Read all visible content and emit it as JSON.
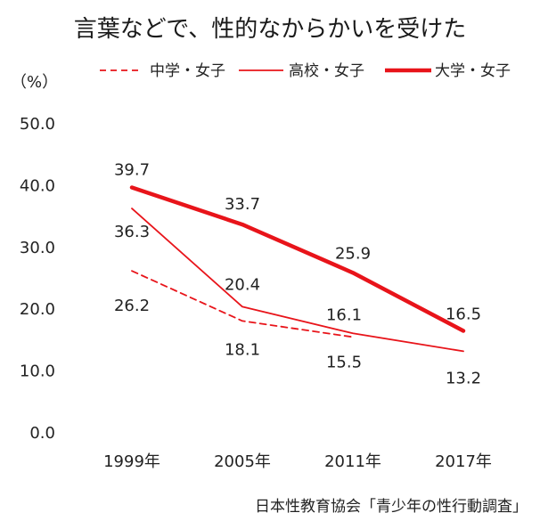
{
  "title": "言葉などで、性的なからかいを受けた",
  "unit": "（%）",
  "source": "日本性教育協会「青少年の性行動調査」",
  "colors": {
    "series": "#e8141a",
    "text": "#222222"
  },
  "chart_data": {
    "type": "line",
    "title": "言葉などで、性的なからかいを受けた",
    "ylabel": "（%）",
    "xlabel": "",
    "categories": [
      "1999年",
      "2005年",
      "2011年",
      "2017年"
    ],
    "ylim": [
      0,
      50
    ],
    "yticks": [
      "0.0",
      "10.0",
      "20.0",
      "30.0",
      "40.0",
      "50.0"
    ],
    "grid": false,
    "legend": "top",
    "series": [
      {
        "name": "中学・女子",
        "style": "dashed",
        "values": [
          26.2,
          18.1,
          15.5,
          null
        ],
        "labels": [
          "26.2",
          "18.1",
          "15.5",
          ""
        ]
      },
      {
        "name": "高校・女子",
        "style": "thin",
        "values": [
          36.3,
          20.4,
          16.1,
          13.2
        ],
        "labels": [
          "36.3",
          "20.4",
          "16.1",
          "13.2"
        ]
      },
      {
        "name": "大学・女子",
        "style": "thick",
        "values": [
          39.7,
          33.7,
          25.9,
          16.5
        ],
        "labels": [
          "39.7",
          "33.7",
          "25.9",
          "16.5"
        ]
      }
    ]
  }
}
